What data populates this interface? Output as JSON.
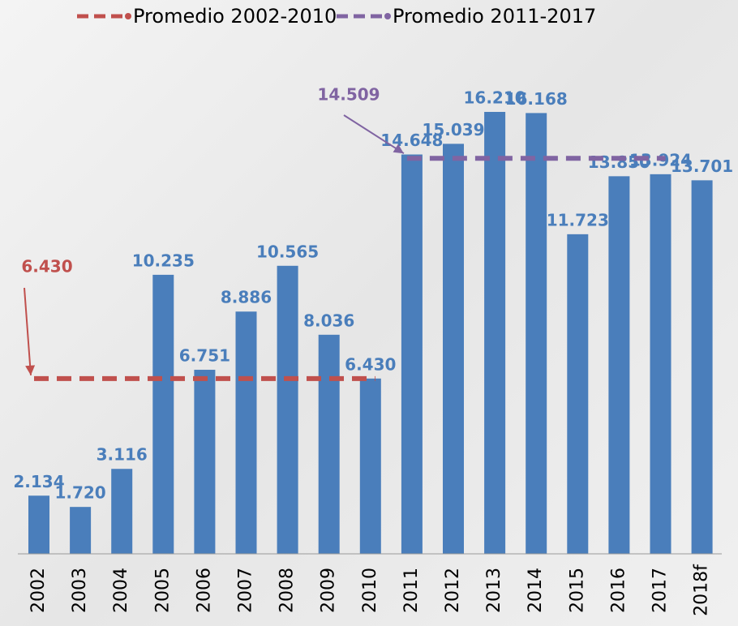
{
  "chart_data": {
    "type": "bar",
    "categories": [
      "2002",
      "2003",
      "2004",
      "2005",
      "2006",
      "2007",
      "2008",
      "2009",
      "2010",
      "2011",
      "2012",
      "2013",
      "2014",
      "2015",
      "2016",
      "2017",
      "2018f"
    ],
    "values": [
      2.134,
      1.72,
      3.116,
      10.235,
      6.751,
      8.886,
      10.565,
      8.036,
      6.43,
      14.648,
      15.039,
      16.21,
      16.168,
      11.723,
      13.85,
      13.924,
      13.701
    ],
    "value_labels": [
      "2.134",
      "1.720",
      "3.116",
      "10.235",
      "6.751",
      "8.886",
      "10.565",
      "8.036",
      "6.430",
      "14.648",
      "15.039",
      "16.210",
      "16.168",
      "11.723",
      "13.850",
      "13.924",
      "13.701"
    ],
    "color": "#4a7ebb",
    "averages": [
      {
        "name": "Promedio 2002-2010",
        "color": "#c0504d",
        "value": 6.43,
        "value_label": "6.430",
        "span": [
          "2002",
          "2010"
        ]
      },
      {
        "name": "Promedio 2011-2017",
        "color": "#8064a2",
        "value": 14.509,
        "value_label": "14.509",
        "span": [
          "2011",
          "2017"
        ]
      }
    ]
  }
}
